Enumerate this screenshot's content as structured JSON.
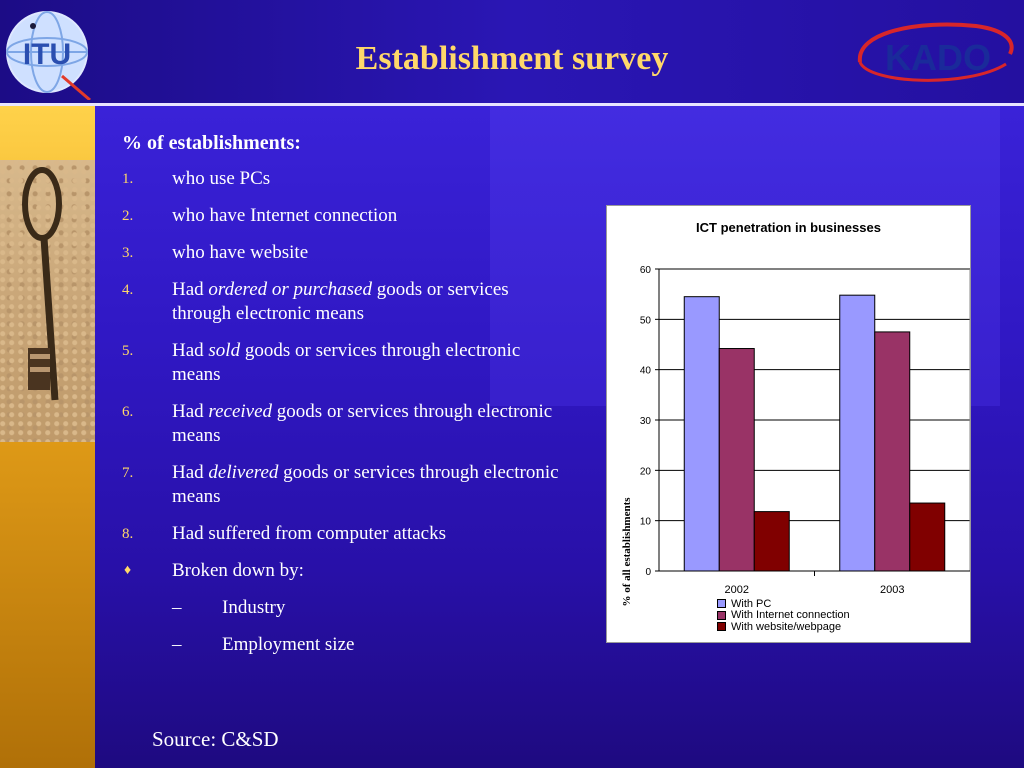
{
  "slide": {
    "title": "Establishment survey",
    "source": "Source: C&SD"
  },
  "logos": {
    "left": {
      "text": "ITU",
      "icon": "itu-globe-logo"
    },
    "right": {
      "text": "KADO",
      "icon": "kado-logo"
    }
  },
  "list": {
    "heading": "% of establishments:",
    "items": [
      {
        "num": "1.",
        "text": "who use PCs"
      },
      {
        "num": "2.",
        "text": "who have Internet connection"
      },
      {
        "num": "3.",
        "text": "who have website"
      },
      {
        "num": "4.",
        "pre": "Had ",
        "em": "ordered or purchased",
        "post": " goods or services through electronic means"
      },
      {
        "num": "5.",
        "pre": "Had ",
        "em": "sold",
        "post": " goods or services through electronic means"
      },
      {
        "num": "6.",
        "pre": "Had ",
        "em": "received",
        "post": " goods or services through electronic means"
      },
      {
        "num": "7.",
        "pre": "Had ",
        "em": "delivered",
        "post": " goods or services through electronic means"
      },
      {
        "num": "8.",
        "text": "Had suffered from computer attacks"
      }
    ],
    "bullet": {
      "symbol": "♦",
      "text": "Broken down by:"
    },
    "subitems": [
      {
        "dash": "–",
        "text": "Industry"
      },
      {
        "dash": "–",
        "text": "Employment size"
      }
    ]
  },
  "colors": {
    "title": "#ffd86a",
    "with_pc": "#9999ff",
    "with_internet": "#993366",
    "with_website": "#800000"
  },
  "chart_data": {
    "type": "bar",
    "title": "ICT penetration in businesses",
    "xlabel": "",
    "ylabel": "% of all establishments",
    "categories": [
      "2002",
      "2003"
    ],
    "ylim": [
      0,
      60
    ],
    "yticks": [
      0,
      10,
      20,
      30,
      40,
      50,
      60
    ],
    "grid": true,
    "legend_position": "bottom",
    "series": [
      {
        "name": "With PC",
        "values": [
          54.5,
          54.8
        ],
        "color": "#9999ff"
      },
      {
        "name": "With Internet connection",
        "values": [
          44.2,
          47.5
        ],
        "color": "#993366"
      },
      {
        "name": "With website/webpage",
        "values": [
          11.8,
          13.5
        ],
        "color": "#800000"
      }
    ]
  }
}
